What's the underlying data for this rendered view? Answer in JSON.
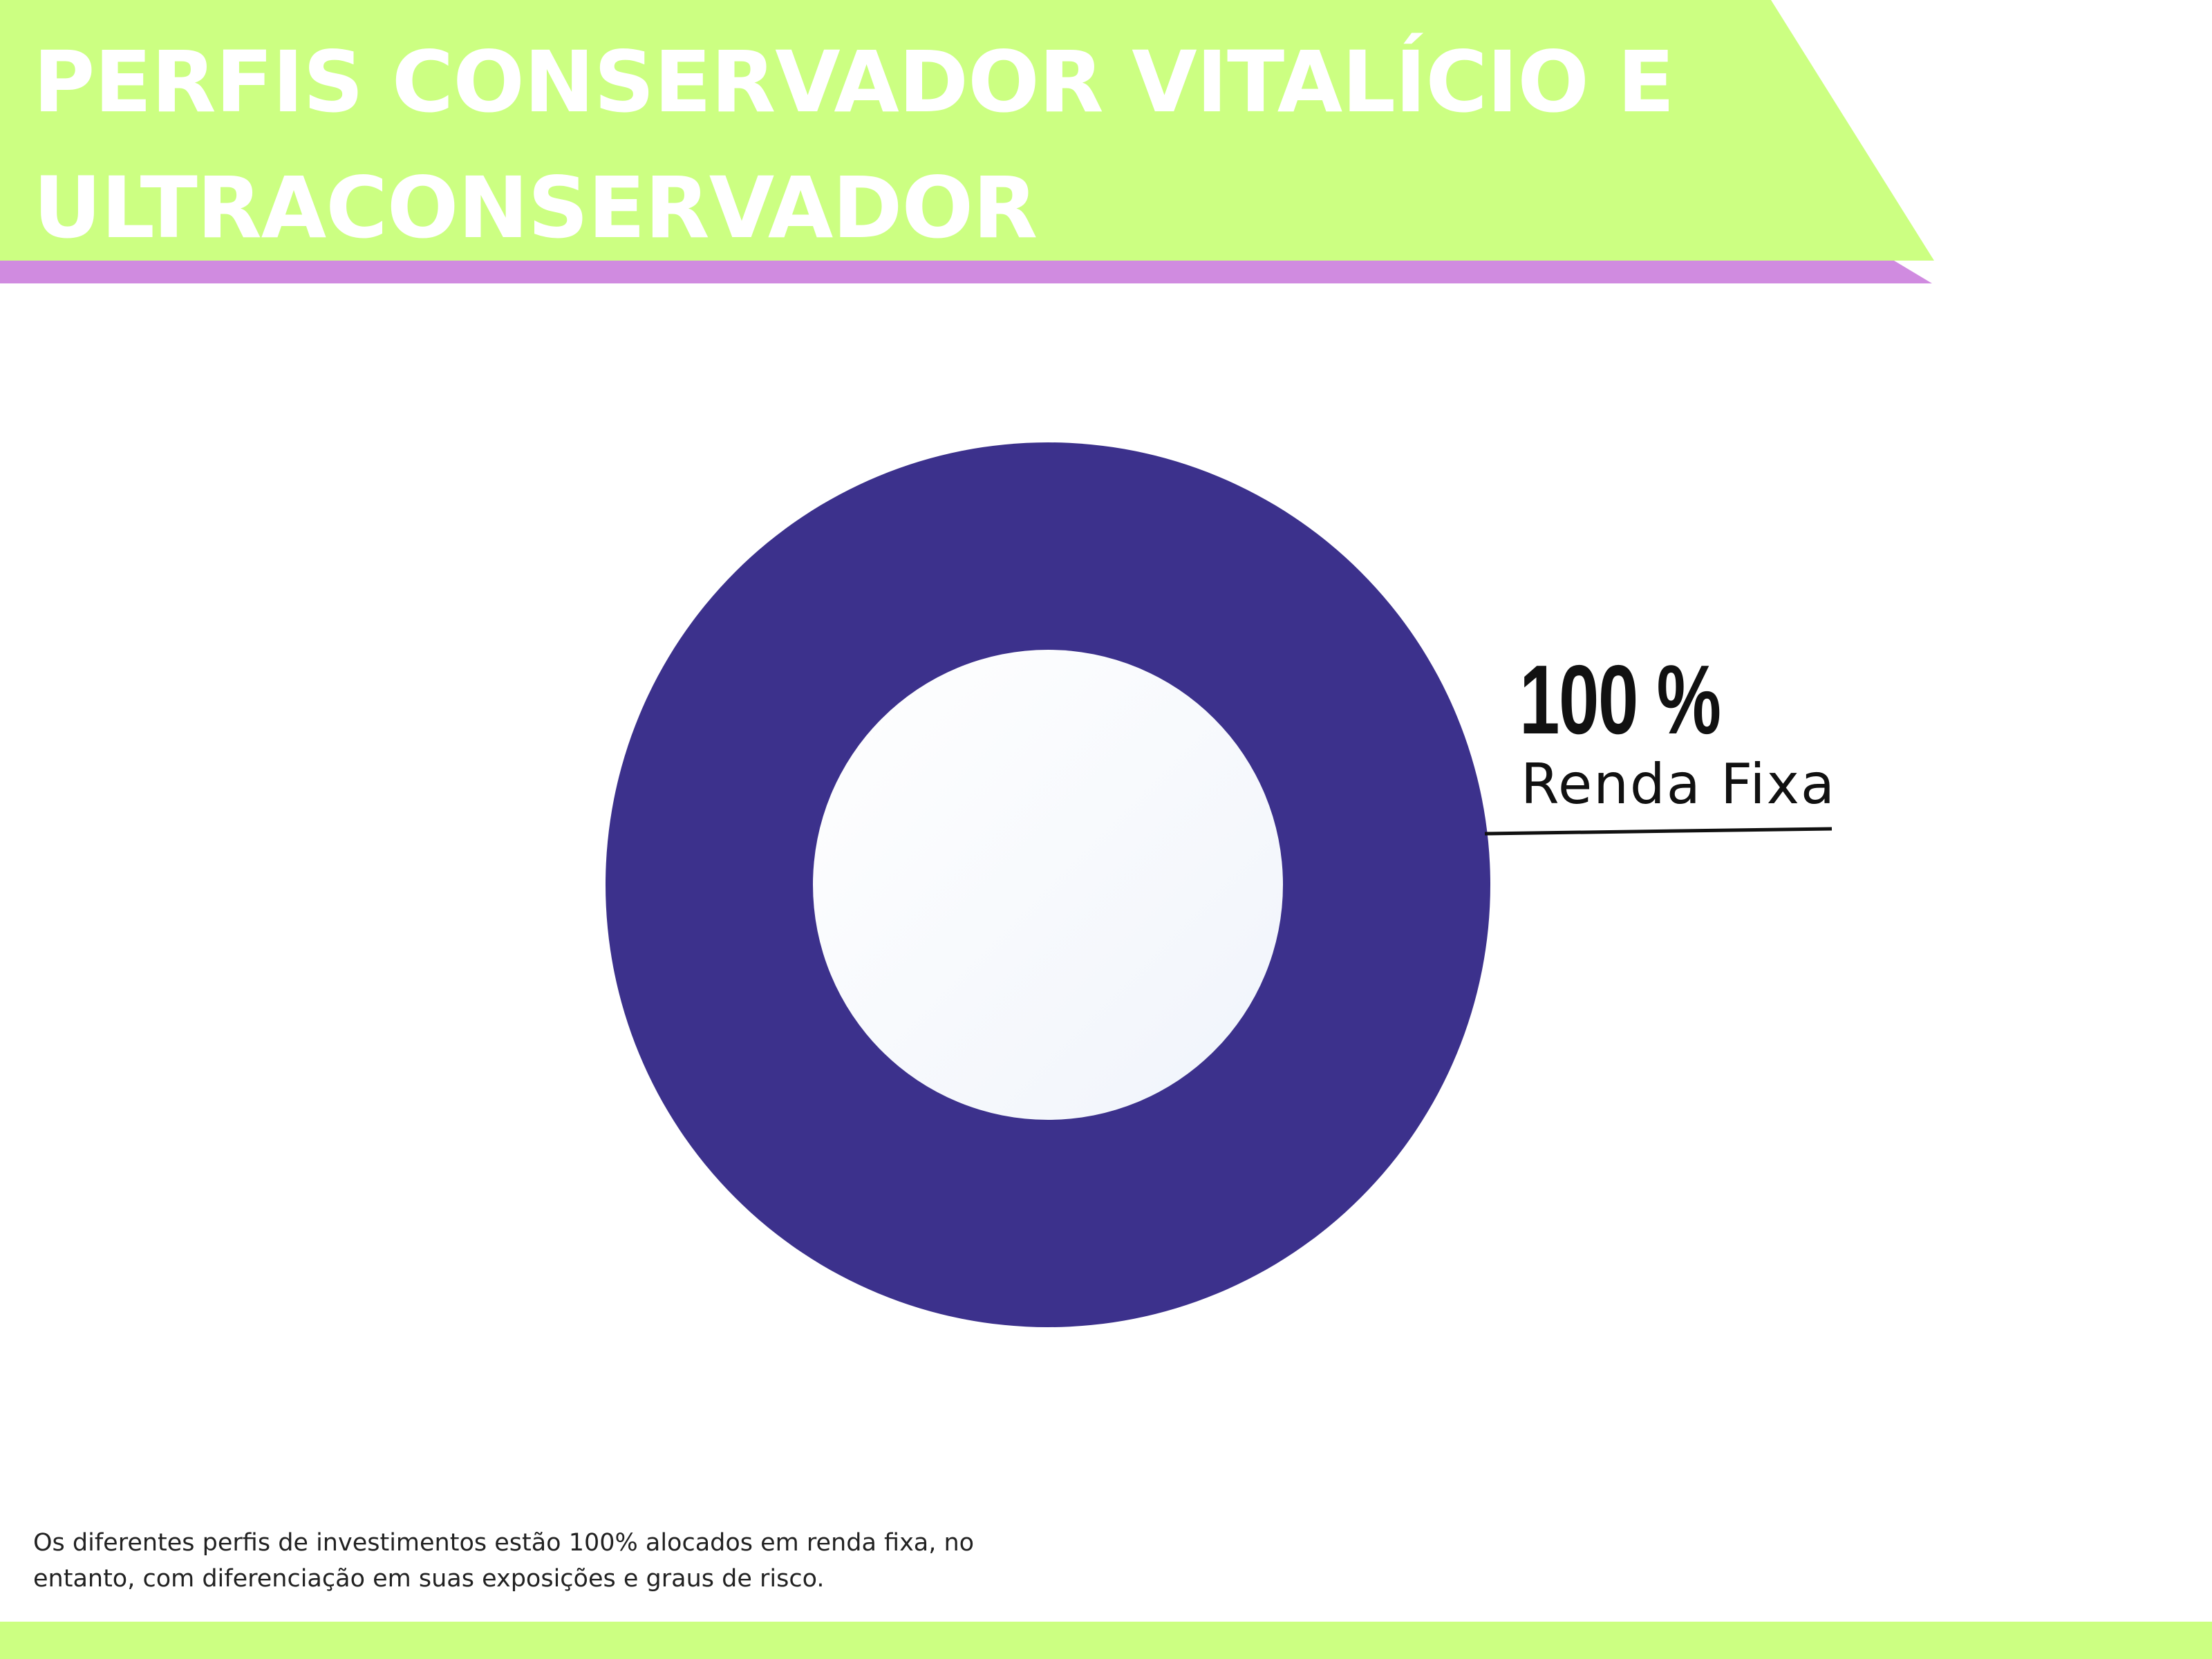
{
  "header": {
    "title": "PERFIS  CONSERVADOR VITALÍCIO E ULTRACONSERVADOR"
  },
  "chart_data": {
    "type": "pie",
    "title": "",
    "slices": [
      {
        "label": "Renda Fixa",
        "value": 100,
        "display": "100 %",
        "color": "#3c318c"
      }
    ],
    "donut": true
  },
  "footnote": "Os diferentes perfis de investimentos estão 100% alocados em renda fixa, no entanto, com diferenciação em suas exposições e graus de risco.",
  "colors": {
    "banner_green": "#ccff82",
    "banner_stripe": "#d08be0",
    "ring": "#3c318c",
    "hole": "#f6f8fc",
    "text": "#111111"
  }
}
